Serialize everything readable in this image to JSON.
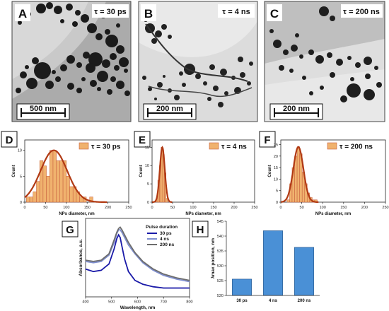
{
  "panels": {
    "A": {
      "letter": "A",
      "tau": "τ = 30 ps",
      "scale": "500 nm"
    },
    "B": {
      "letter": "B",
      "tau": "τ = 4 ns",
      "scale": "200 nm"
    },
    "C": {
      "letter": "C",
      "tau": "τ = 200 ns",
      "scale": "200 nm"
    },
    "D": {
      "letter": "D"
    },
    "E": {
      "letter": "E"
    },
    "F": {
      "letter": "F"
    },
    "G": {
      "letter": "G"
    },
    "H": {
      "letter": "H"
    }
  },
  "colors": {
    "bar": "#f0b26e",
    "bar_edge": "#c55a3a",
    "fit": "#b13a14",
    "g30": "#1a1aa8",
    "g4": "#7f8fd0",
    "g200": "#6d6d6d",
    "hbar": "#4a90d6"
  },
  "chart_data": [
    {
      "type": "bar",
      "panel": "D",
      "legend": "τ = 30 ps",
      "xlabel": "NPs diameter, nm",
      "ylabel": "Count",
      "xlim": [
        0,
        250
      ],
      "ylim": [
        0,
        12
      ],
      "xticks": [
        "0",
        "50",
        "100",
        "150",
        "200",
        "250"
      ],
      "yticks": [
        "0",
        "5",
        "10"
      ],
      "bin_width": 8,
      "bins": [
        8,
        16,
        24,
        32,
        40,
        48,
        56,
        64,
        72,
        80,
        88,
        96,
        104,
        112,
        120,
        128,
        136,
        144,
        152,
        160,
        168
      ],
      "values": [
        1,
        1,
        2,
        4,
        8,
        7,
        5,
        10,
        10,
        8,
        8,
        8,
        5,
        3,
        3,
        2,
        1,
        1,
        0,
        1,
        0
      ],
      "fit": {
        "mean": 70,
        "sigma": 32,
        "peak": 10
      }
    },
    {
      "type": "bar",
      "panel": "E",
      "legend": "τ = 4 ns",
      "xlabel": "NPs diameter, nm",
      "ylabel": "Count",
      "xlim": [
        0,
        250
      ],
      "ylim": [
        0,
        17
      ],
      "xticks": [
        "0",
        "50",
        "100",
        "150",
        "200",
        "250"
      ],
      "yticks": [
        "0",
        "5",
        "10",
        "15"
      ],
      "bin_width": 4,
      "bins": [
        12,
        16,
        20,
        24,
        28,
        32,
        36
      ],
      "values": [
        1,
        6,
        10,
        15,
        13,
        8,
        1
      ],
      "fit": {
        "mean": 25,
        "sigma": 6,
        "peak": 15
      }
    },
    {
      "type": "bar",
      "panel": "F",
      "legend": "τ = 200 ns",
      "xlabel": "NPs diameter, nm",
      "ylabel": "Count",
      "xlim": [
        0,
        250
      ],
      "ylim": [
        0,
        27
      ],
      "xticks": [
        "0",
        "50",
        "100",
        "150",
        "200",
        "250"
      ],
      "yticks": [
        "0",
        "5",
        "10",
        "15",
        "20",
        "25"
      ],
      "bin_width": 6,
      "bins": [
        18,
        24,
        30,
        36,
        42,
        48,
        54,
        60,
        66,
        72,
        78,
        84
      ],
      "values": [
        1,
        8,
        15,
        20,
        24,
        21,
        13,
        8,
        4,
        2,
        1,
        1
      ],
      "fit": {
        "mean": 42,
        "sigma": 12,
        "peak": 24
      }
    },
    {
      "type": "line",
      "panel": "G",
      "legend_title": "Pulse duration",
      "xlabel": "Wavelength, nm",
      "ylabel": "Absorbance, a.u.",
      "xlim": [
        400,
        800
      ],
      "xticks": [
        "400",
        "500",
        "600",
        "700",
        "800"
      ],
      "x": [
        400,
        430,
        460,
        490,
        510,
        520,
        527,
        533,
        540,
        550,
        565,
        590,
        620,
        660,
        700,
        750,
        800
      ],
      "series": [
        {
          "name": "30 ps",
          "values": [
            0.32,
            0.3,
            0.31,
            0.36,
            0.48,
            0.56,
            0.59,
            0.57,
            0.5,
            0.4,
            0.3,
            0.23,
            0.2,
            0.18,
            0.17,
            0.17,
            0.17
          ]
        },
        {
          "name": "4 ns",
          "values": [
            0.38,
            0.37,
            0.38,
            0.43,
            0.53,
            0.6,
            0.63,
            0.63,
            0.61,
            0.57,
            0.51,
            0.44,
            0.37,
            0.31,
            0.27,
            0.24,
            0.22
          ]
        },
        {
          "name": "200 ns",
          "values": [
            0.39,
            0.38,
            0.39,
            0.44,
            0.55,
            0.61,
            0.64,
            0.65,
            0.63,
            0.59,
            0.53,
            0.45,
            0.38,
            0.32,
            0.28,
            0.25,
            0.23
          ]
        }
      ]
    },
    {
      "type": "bar",
      "panel": "H",
      "ylabel": "λmax position, nm",
      "categories": [
        "30 ps",
        "4 ns",
        "200 ns"
      ],
      "values": [
        525.5,
        541.8,
        536.2
      ],
      "ylim": [
        520,
        545
      ],
      "yticks": [
        "520",
        "525",
        "530",
        "535",
        "540",
        "545"
      ]
    }
  ]
}
